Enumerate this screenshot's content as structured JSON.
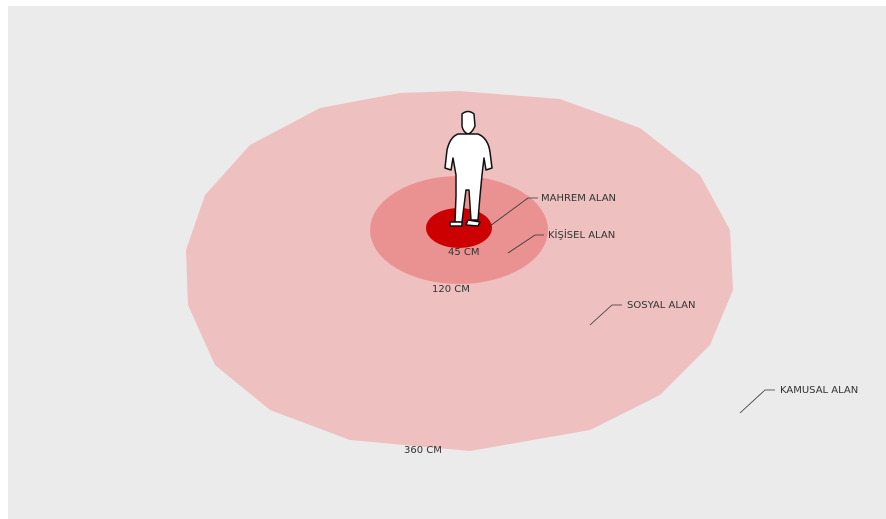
{
  "zones": [
    {
      "label": "MAHREM ALAN",
      "distance": "45 CM"
    },
    {
      "label": "KİŞİSEL ALAN",
      "distance": "120 CM"
    },
    {
      "label": "SOSYAL ALAN",
      "distance": "360 CM"
    },
    {
      "label": "KAMUSAL ALAN"
    }
  ]
}
